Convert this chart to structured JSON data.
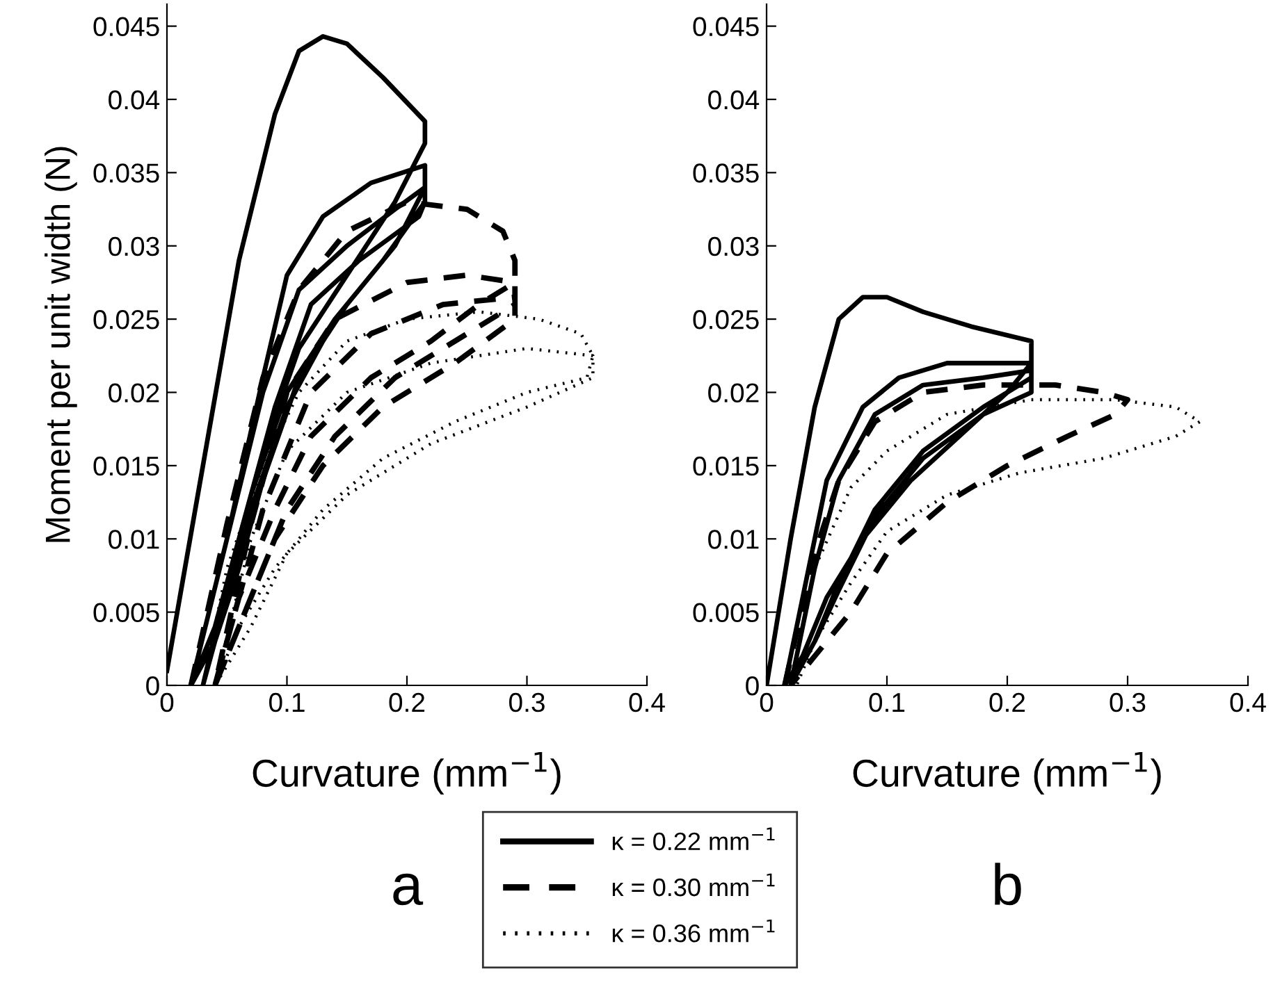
{
  "chart_data": [
    {
      "type": "line",
      "xlabel": "Curvature (mm$^{−1}$)",
      "ylabel": "Moment per unit width (N)",
      "annotations": [
        "a"
      ],
      "legend": "bottom",
      "xlim": [
        0,
        0.4
      ],
      "xticks": [
        0,
        0.1,
        0.2,
        0.3,
        0.4
      ],
      "ylim": [
        0,
        0.0465
      ],
      "yticks": [
        0,
        0.005,
        0.01,
        0.015,
        0.02,
        0.025,
        0.03,
        0.035,
        0.04,
        0.045
      ],
      "series": [
        {
          "name": "κ = 0.22 mm$^{−1}$",
          "color": "#000000",
          "line_style": "solid",
          "x": [
            0.0,
            0.03,
            0.06,
            0.09,
            0.11,
            0.13,
            0.15,
            0.18,
            0.215,
            0.215,
            0.19,
            0.15,
            0.11,
            0.08,
            0.06,
            0.04,
            0.02,
            0.02,
            0.05,
            0.08,
            0.1,
            0.13,
            0.17,
            0.215,
            0.215,
            0.19,
            0.15,
            0.11,
            0.08,
            0.06,
            0.04,
            0.02,
            0.02,
            0.05,
            0.08,
            0.11,
            0.15,
            0.19,
            0.215,
            0.215,
            0.18,
            0.14,
            0.1,
            0.07,
            0.05,
            0.03,
            0.03,
            0.06,
            0.09,
            0.12,
            0.16,
            0.21,
            0.215,
            0.18,
            0.14,
            0.1,
            0.07,
            0.05,
            0.03
          ],
          "values": [
            0.001,
            0.015,
            0.029,
            0.039,
            0.0433,
            0.0443,
            0.0438,
            0.0415,
            0.0385,
            0.037,
            0.033,
            0.028,
            0.023,
            0.016,
            0.01,
            0.004,
            0.0,
            0.0,
            0.01,
            0.021,
            0.028,
            0.032,
            0.0343,
            0.0355,
            0.034,
            0.03,
            0.026,
            0.021,
            0.014,
            0.008,
            0.003,
            0.0,
            0.0,
            0.01,
            0.02,
            0.027,
            0.03,
            0.0325,
            0.034,
            0.033,
            0.029,
            0.025,
            0.02,
            0.013,
            0.007,
            0.0,
            0.0,
            0.01,
            0.019,
            0.026,
            0.029,
            0.032,
            0.033,
            0.029,
            0.025,
            0.019,
            0.012,
            0.006,
            0.0
          ]
        },
        {
          "name": "κ = 0.30 mm$^{−1}$",
          "color": "#000000",
          "line_style": "dashed",
          "x": [
            0.02,
            0.05,
            0.08,
            0.11,
            0.15,
            0.2,
            0.25,
            0.28,
            0.29,
            0.29,
            0.26,
            0.22,
            0.17,
            0.12,
            0.09,
            0.06,
            0.04,
            0.04,
            0.07,
            0.1,
            0.14,
            0.2,
            0.25,
            0.29,
            0.29,
            0.25,
            0.19,
            0.14,
            0.1,
            0.07,
            0.04,
            0.04,
            0.08,
            0.12,
            0.17,
            0.23,
            0.29,
            0.29,
            0.24,
            0.18,
            0.13,
            0.09,
            0.06,
            0.04
          ],
          "values": [
            0.0,
            0.011,
            0.021,
            0.027,
            0.031,
            0.033,
            0.0325,
            0.031,
            0.029,
            0.0275,
            0.026,
            0.0235,
            0.021,
            0.017,
            0.012,
            0.006,
            0.0,
            0.0,
            0.011,
            0.02,
            0.025,
            0.0275,
            0.028,
            0.0275,
            0.026,
            0.024,
            0.021,
            0.017,
            0.012,
            0.006,
            0.0,
            0.0,
            0.012,
            0.02,
            0.024,
            0.026,
            0.0265,
            0.025,
            0.022,
            0.019,
            0.015,
            0.01,
            0.004,
            0.0
          ]
        },
        {
          "name": "κ = 0.36 mm$^{−1}$",
          "color": "#000000",
          "line_style": "dotted",
          "x": [
            0.03,
            0.05,
            0.08,
            0.11,
            0.15,
            0.2,
            0.26,
            0.31,
            0.345,
            0.355,
            0.35,
            0.3,
            0.24,
            0.18,
            0.13,
            0.09,
            0.06,
            0.04,
            0.04,
            0.07,
            0.1,
            0.15,
            0.22,
            0.3,
            0.355,
            0.355,
            0.3,
            0.22,
            0.15,
            0.1,
            0.07,
            0.04
          ],
          "values": [
            0.0,
            0.008,
            0.015,
            0.02,
            0.0235,
            0.025,
            0.0255,
            0.025,
            0.024,
            0.0225,
            0.021,
            0.02,
            0.018,
            0.0155,
            0.012,
            0.008,
            0.004,
            0.0,
            0.0,
            0.01,
            0.016,
            0.02,
            0.022,
            0.023,
            0.0225,
            0.021,
            0.019,
            0.0165,
            0.013,
            0.009,
            0.004,
            0.0
          ]
        }
      ]
    },
    {
      "type": "line",
      "xlabel": "Curvature (mm$^{−1}$)",
      "annotations": [
        "b"
      ],
      "xlim": [
        0,
        0.4
      ],
      "xticks": [
        0,
        0.1,
        0.2,
        0.3,
        0.4
      ],
      "ylim": [
        0,
        0.0465
      ],
      "yticks": [
        0,
        0.005,
        0.01,
        0.015,
        0.02,
        0.025,
        0.03,
        0.035,
        0.04,
        0.045
      ],
      "series": [
        {
          "color": "#000000",
          "line_style": "solid",
          "x": [
            0.0,
            0.02,
            0.04,
            0.06,
            0.08,
            0.1,
            0.13,
            0.17,
            0.22,
            0.22,
            0.2,
            0.16,
            0.12,
            0.08,
            0.05,
            0.03,
            0.015,
            0.015,
            0.03,
            0.05,
            0.08,
            0.11,
            0.15,
            0.22,
            0.22,
            0.18,
            0.13,
            0.09,
            0.06,
            0.04,
            0.02,
            0.02,
            0.04,
            0.06,
            0.09,
            0.13,
            0.18,
            0.22,
            0.22,
            0.18,
            0.13,
            0.09,
            0.06,
            0.04,
            0.02
          ],
          "values": [
            0.0,
            0.01,
            0.019,
            0.025,
            0.0265,
            0.0265,
            0.0255,
            0.0245,
            0.0235,
            0.022,
            0.02,
            0.017,
            0.014,
            0.01,
            0.006,
            0.002,
            0.0,
            0.0,
            0.006,
            0.014,
            0.019,
            0.021,
            0.022,
            0.022,
            0.021,
            0.019,
            0.016,
            0.012,
            0.007,
            0.003,
            0.0,
            0.0,
            0.008,
            0.014,
            0.0185,
            0.0205,
            0.021,
            0.0215,
            0.02,
            0.0185,
            0.0155,
            0.0115,
            0.0065,
            0.003,
            0.0
          ]
        },
        {
          "color": "#000000",
          "line_style": "dashed",
          "x": [
            0.015,
            0.04,
            0.06,
            0.09,
            0.13,
            0.18,
            0.24,
            0.28,
            0.3,
            0.29,
            0.25,
            0.2,
            0.15,
            0.1,
            0.07,
            0.04,
            0.02
          ],
          "values": [
            0.0,
            0.009,
            0.014,
            0.018,
            0.02,
            0.0205,
            0.0205,
            0.02,
            0.0195,
            0.0185,
            0.017,
            0.015,
            0.0125,
            0.009,
            0.005,
            0.002,
            0.0
          ]
        },
        {
          "color": "#000000",
          "line_style": "dotted",
          "x": [
            0.02,
            0.04,
            0.07,
            0.1,
            0.15,
            0.22,
            0.29,
            0.34,
            0.36,
            0.34,
            0.28,
            0.21,
            0.15,
            0.1,
            0.07,
            0.04,
            0.025
          ],
          "values": [
            0.0,
            0.008,
            0.0135,
            0.016,
            0.0185,
            0.0195,
            0.0195,
            0.019,
            0.018,
            0.017,
            0.0155,
            0.0145,
            0.013,
            0.0105,
            0.007,
            0.003,
            0.0
          ]
        }
      ]
    }
  ]
}
